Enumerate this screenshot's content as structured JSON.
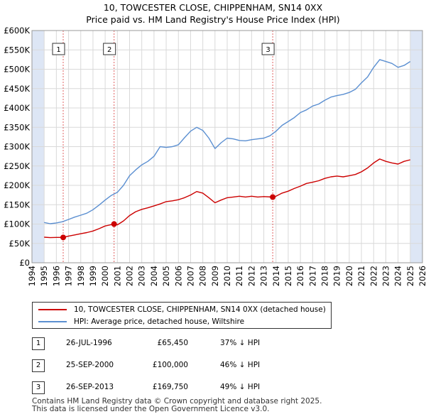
{
  "title_line1": "10, TOWCESTER CLOSE, CHIPPENHAM, SN14 0XX",
  "title_line2": "Price paid vs. HM Land Registry's House Price Index (HPI)",
  "legend": {
    "property_label": "10, TOWCESTER CLOSE, CHIPPENHAM, SN14 0XX (detached house)",
    "hpi_label": "HPI: Average price, detached house, Wiltshire"
  },
  "sales": [
    {
      "num": "1",
      "date": "26-JUL-1996",
      "price": "£65,450",
      "hpi": "37% ↓ HPI"
    },
    {
      "num": "2",
      "date": "25-SEP-2000",
      "price": "£100,000",
      "hpi": "46% ↓ HPI"
    },
    {
      "num": "3",
      "date": "26-SEP-2013",
      "price": "£169,750",
      "hpi": "49% ↓ HPI"
    }
  ],
  "footer_line1": "Contains HM Land Registry data © Crown copyright and database right 2025.",
  "footer_line2": "This data is licensed under the Open Government Licence v3.0.",
  "colors": {
    "property": "#cc0000",
    "hpi": "#5b8fd1",
    "shade": "#dde6f5",
    "grid": "#d9d9d9",
    "vline": "#e06060"
  },
  "chart_data": {
    "type": "line",
    "xlim": [
      1994,
      2026
    ],
    "ylim": [
      0,
      600000
    ],
    "y_ticks": [
      0,
      50000,
      100000,
      150000,
      200000,
      250000,
      300000,
      350000,
      400000,
      450000,
      500000,
      550000,
      600000
    ],
    "y_tick_labels": [
      "£0",
      "£50K",
      "£100K",
      "£150K",
      "£200K",
      "£250K",
      "£300K",
      "£350K",
      "£400K",
      "£450K",
      "£500K",
      "£550K",
      "£600K"
    ],
    "x_ticks": [
      1994,
      1995,
      1996,
      1997,
      1998,
      1999,
      2000,
      2001,
      2002,
      2003,
      2004,
      2005,
      2006,
      2007,
      2008,
      2009,
      2010,
      2011,
      2012,
      2013,
      2014,
      2015,
      2016,
      2017,
      2018,
      2019,
      2020,
      2021,
      2022,
      2023,
      2024,
      2025,
      2026
    ],
    "x_tick_labels": [
      "1994",
      "1995",
      "1996",
      "1997",
      "1998",
      "1999",
      "2000",
      "2001",
      "2002",
      "2003",
      "2004",
      "2005",
      "2006",
      "2007",
      "2008",
      "2009",
      "2010",
      "2011",
      "2012",
      "2013",
      "2014",
      "2015",
      "2016",
      "2017",
      "2018",
      "2019",
      "2020",
      "2021",
      "2022",
      "2023",
      "2024",
      "2025",
      "2026"
    ],
    "shaded_ranges": [
      [
        1994,
        1995
      ],
      [
        2025,
        2026
      ]
    ],
    "sale_markers": [
      {
        "label": "1",
        "x": 1996.56,
        "y": 65450
      },
      {
        "label": "2",
        "x": 2000.73,
        "y": 100000
      },
      {
        "label": "3",
        "x": 2013.73,
        "y": 169750
      }
    ],
    "series": [
      {
        "name": "HPI: Average price, detached house, Wiltshire",
        "x": [
          1995.0,
          1995.5,
          1996.0,
          1996.5,
          1997.0,
          1997.5,
          1998.0,
          1998.5,
          1999.0,
          1999.5,
          2000.0,
          2000.5,
          2001.0,
          2001.5,
          2002.0,
          2002.5,
          2003.0,
          2003.5,
          2004.0,
          2004.5,
          2005.0,
          2005.5,
          2006.0,
          2006.5,
          2007.0,
          2007.5,
          2008.0,
          2008.5,
          2009.0,
          2009.5,
          2010.0,
          2010.5,
          2011.0,
          2011.5,
          2012.0,
          2012.5,
          2013.0,
          2013.5,
          2014.0,
          2014.5,
          2015.0,
          2015.5,
          2016.0,
          2016.5,
          2017.0,
          2017.5,
          2018.0,
          2018.5,
          2019.0,
          2019.5,
          2020.0,
          2020.5,
          2021.0,
          2021.5,
          2022.0,
          2022.5,
          2023.0,
          2023.5,
          2024.0,
          2024.5,
          2025.0
        ],
        "values": [
          104000,
          101000,
          103000,
          106000,
          112000,
          118000,
          123000,
          128000,
          137000,
          149000,
          162000,
          174000,
          182000,
          200000,
          225000,
          240000,
          253000,
          262000,
          275000,
          300000,
          298000,
          300000,
          305000,
          323000,
          340000,
          350000,
          342000,
          322000,
          295000,
          310000,
          322000,
          320000,
          316000,
          315000,
          318000,
          320000,
          322000,
          328000,
          340000,
          355000,
          365000,
          375000,
          388000,
          395000,
          405000,
          410000,
          420000,
          428000,
          432000,
          435000,
          440000,
          448000,
          465000,
          480000,
          505000,
          525000,
          520000,
          515000,
          505000,
          510000,
          520000
        ]
      },
      {
        "name": "10, TOWCESTER CLOSE, CHIPPENHAM, SN14 0XX (detached house)",
        "x": [
          1995.0,
          1995.5,
          1996.0,
          1996.56,
          1997.0,
          1997.5,
          1998.0,
          1998.5,
          1999.0,
          1999.5,
          2000.0,
          2000.73,
          2001.0,
          2001.5,
          2002.0,
          2002.5,
          2003.0,
          2003.5,
          2004.0,
          2004.5,
          2005.0,
          2005.5,
          2006.0,
          2006.5,
          2007.0,
          2007.5,
          2008.0,
          2008.5,
          2009.0,
          2009.5,
          2010.0,
          2010.5,
          2011.0,
          2011.5,
          2012.0,
          2012.5,
          2013.0,
          2013.73,
          2014.0,
          2014.5,
          2015.0,
          2015.5,
          2016.0,
          2016.5,
          2017.0,
          2017.5,
          2018.0,
          2018.5,
          2019.0,
          2019.5,
          2020.0,
          2020.5,
          2021.0,
          2021.5,
          2022.0,
          2022.5,
          2023.0,
          2023.5,
          2024.0,
          2024.5,
          2025.0
        ],
        "values": [
          66000,
          65000,
          65500,
          65450,
          69000,
          72000,
          75000,
          78000,
          82000,
          88000,
          95000,
          100000,
          98000,
          108000,
          122000,
          132000,
          138000,
          142000,
          147000,
          152000,
          158000,
          160000,
          163000,
          168000,
          175000,
          184000,
          180000,
          168000,
          155000,
          162000,
          168000,
          170000,
          172000,
          170000,
          172000,
          170000,
          171000,
          169750,
          172000,
          180000,
          185000,
          192000,
          198000,
          205000,
          208000,
          212000,
          218000,
          222000,
          224000,
          222000,
          225000,
          228000,
          235000,
          245000,
          258000,
          268000,
          262000,
          258000,
          255000,
          262000,
          266000
        ]
      }
    ]
  }
}
